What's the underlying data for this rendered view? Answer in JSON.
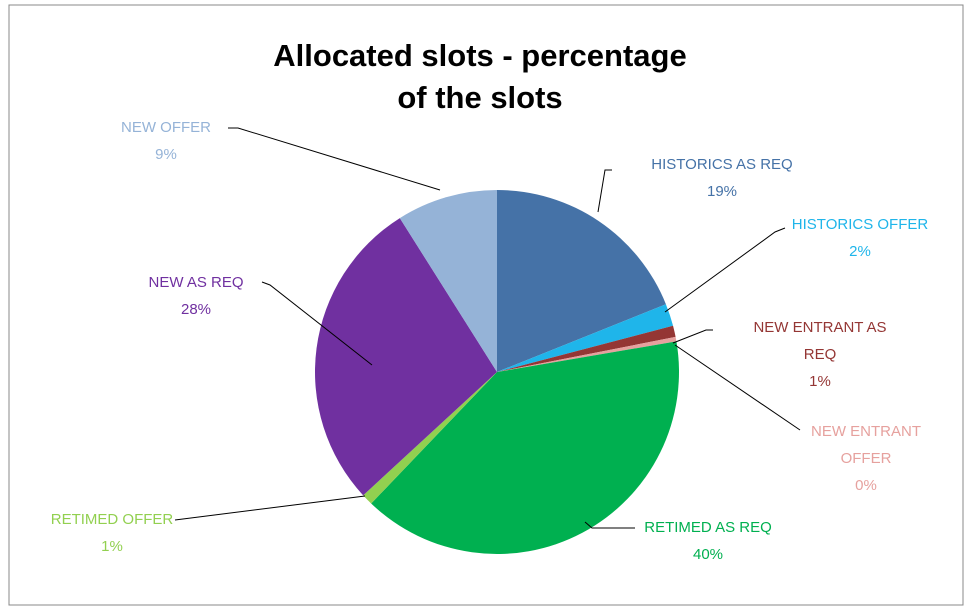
{
  "chart_data": {
    "type": "pie",
    "title": "Allocated slots - percentage of the slots",
    "categories": [
      "HISTORICS AS REQ",
      "HISTORICS OFFER",
      "NEW ENTRANT AS REQ",
      "NEW ENTRANT OFFER",
      "RETIMED AS REQ",
      "RETIMED OFFER",
      "NEW AS REQ",
      "NEW OFFER"
    ],
    "values": [
      19,
      2,
      1,
      0.4,
      40,
      1,
      28,
      9
    ],
    "value_labels": [
      "19%",
      "2%",
      "1%",
      "0%",
      "40%",
      "1%",
      "28%",
      "9%"
    ],
    "colors": [
      "#4572a7",
      "#1fb5ea",
      "#943634",
      "#e6a19e",
      "#00b050",
      "#92d050",
      "#7030a0",
      "#95b3d7"
    ]
  }
}
